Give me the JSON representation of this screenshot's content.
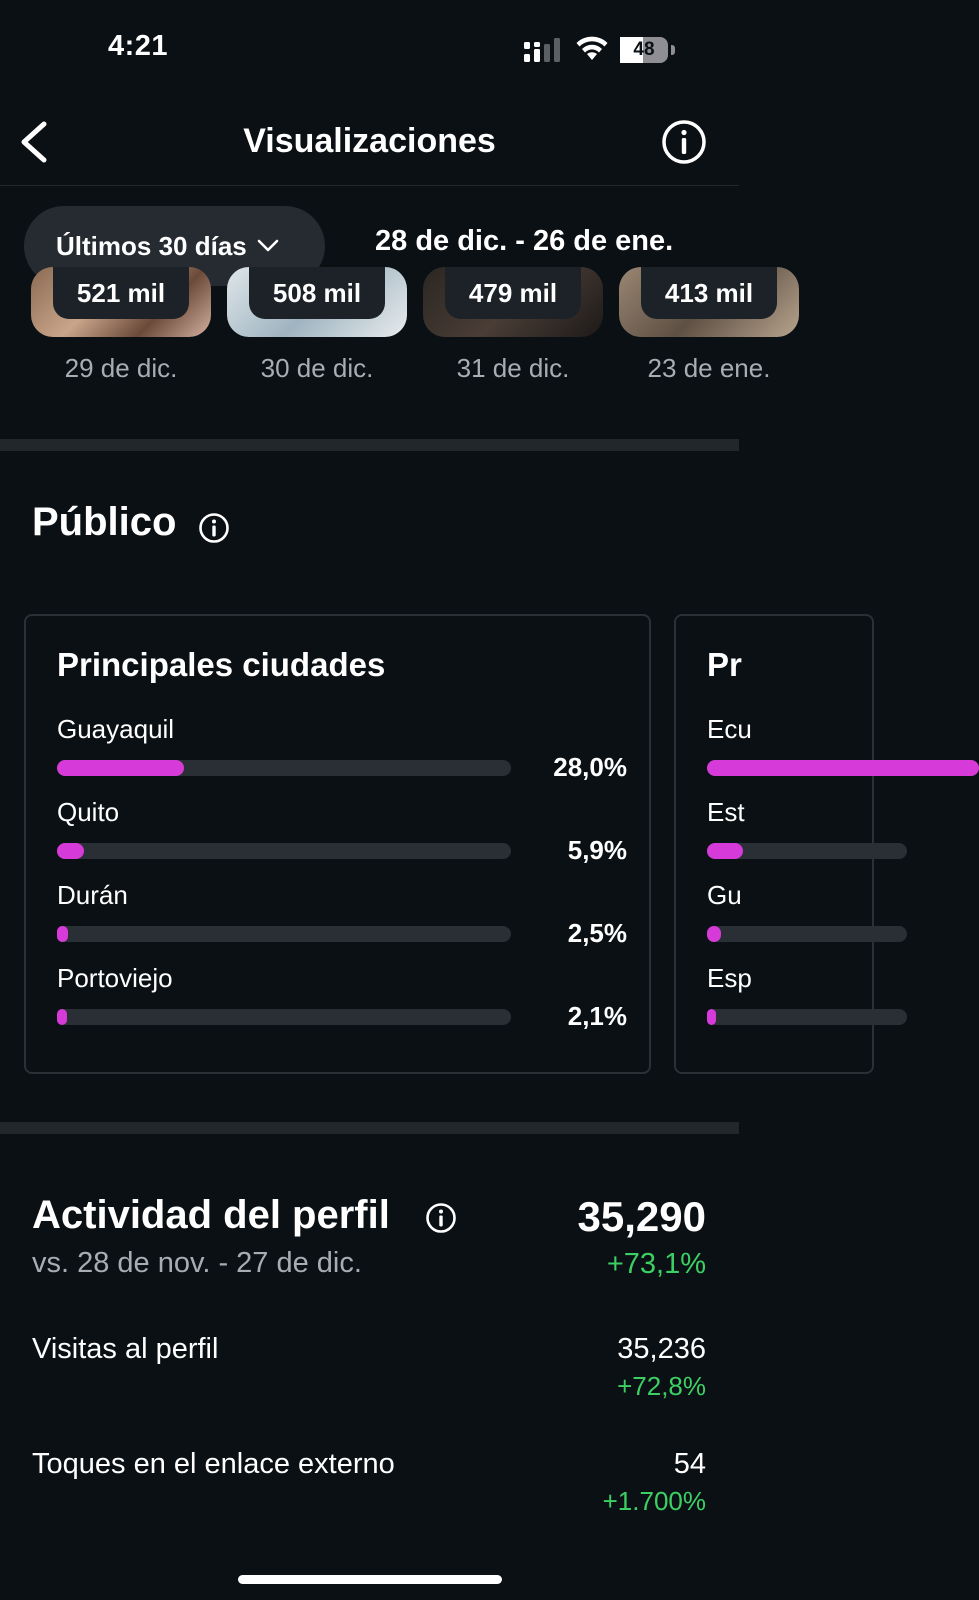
{
  "status_bar": {
    "time": "4:21",
    "battery": "48",
    "battery_level": 0.48
  },
  "header": {
    "title": "Visualizaciones",
    "back_icon": "chevron-left-icon",
    "info_icon": "info-icon"
  },
  "filter": {
    "period_label": "Últimos 30 días",
    "date_range": "28 de dic. - 26 de ene."
  },
  "top_content": [
    {
      "value": "521 mil",
      "date": "29 de dic."
    },
    {
      "value": "508 mil",
      "date": "30 de dic."
    },
    {
      "value": "479 mil",
      "date": "31 de dic."
    },
    {
      "value": "413 mil",
      "date": "23 de ene."
    }
  ],
  "audience": {
    "title": "Público",
    "cities": {
      "title": "Principales ciudades",
      "items": [
        {
          "name": "Guayaquil",
          "pct_label": "28,0%",
          "pct": 28.0
        },
        {
          "name": "Quito",
          "pct_label": "5,9%",
          "pct": 5.9
        },
        {
          "name": "Durán",
          "pct_label": "2,5%",
          "pct": 2.5
        },
        {
          "name": "Portoviejo",
          "pct_label": "2,1%",
          "pct": 2.1
        }
      ]
    },
    "countries_peek": {
      "title": "Pr",
      "items": [
        {
          "name": "Ecu",
          "pct": 60
        },
        {
          "name": "Est",
          "pct": 8
        },
        {
          "name": "Gu",
          "pct": 3
        },
        {
          "name": "Esp",
          "pct": 2
        }
      ]
    }
  },
  "activity": {
    "title": "Actividad del perfil",
    "total": "35,290",
    "compare": "vs. 28 de nov. - 27 de dic.",
    "change": "+73,1%",
    "metrics": [
      {
        "label": "Visitas al perfil",
        "value": "35,236",
        "change": "+72,8%"
      },
      {
        "label": "Toques en el enlace externo",
        "value": "54",
        "change": "+1.700%"
      }
    ]
  },
  "colors": {
    "background": "#0b1014",
    "accent_bar": "#d63ad8",
    "positive": "#3ccf64",
    "muted_text": "#a8adb3"
  }
}
